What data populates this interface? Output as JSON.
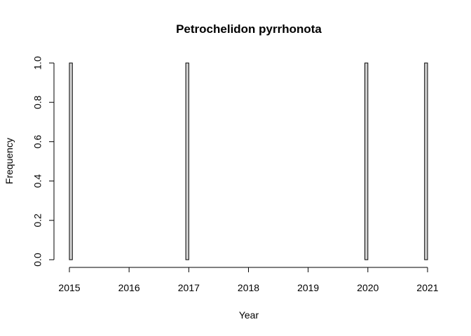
{
  "chart_data": {
    "type": "bar",
    "title": "Petrochelidon pyrrhonota",
    "xlabel": "Year",
    "ylabel": "Frequency",
    "x_ticks": [
      "2015",
      "2016",
      "2017",
      "2018",
      "2019",
      "2020",
      "2021"
    ],
    "y_ticks": [
      "0.0",
      "0.2",
      "0.4",
      "0.6",
      "0.8",
      "1.0"
    ],
    "xlim": [
      2015,
      2021
    ],
    "ylim": [
      0,
      1
    ],
    "bin_width_years": 0.05,
    "bins_nonzero": [
      {
        "start": 2015.0,
        "value": 1
      },
      {
        "start": 2016.95,
        "value": 1
      },
      {
        "start": 2019.95,
        "value": 1
      },
      {
        "start": 2020.95,
        "value": 1
      }
    ],
    "bar_fill": "#d3d3d3",
    "bar_stroke": "#000000",
    "grid": false,
    "legend": "none"
  }
}
